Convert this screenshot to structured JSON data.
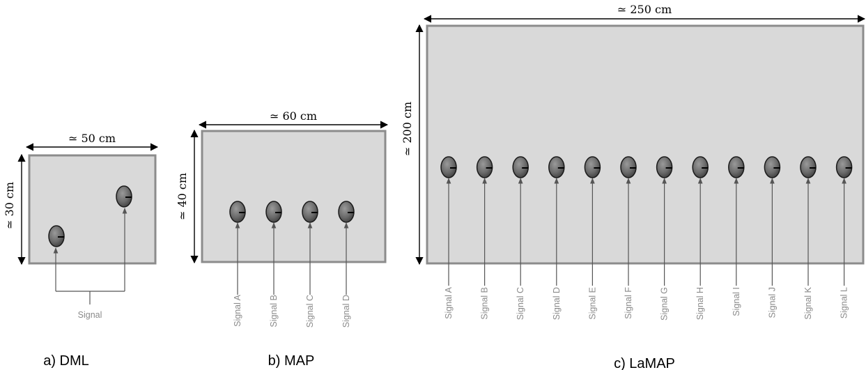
{
  "colors": {
    "panel_fill": "#d9d9d9",
    "panel_border": "#8c8c8c",
    "signal_text": "#8a8a8a",
    "sensor": "#6b6b6b"
  },
  "panels": [
    {
      "id": "dml",
      "caption": "a) DML",
      "width_label": "≃ 50 cm",
      "height_label": "≃ 30 cm",
      "shared_signal_label": "Signal",
      "sensors": 2
    },
    {
      "id": "map",
      "caption": "b) MAP",
      "width_label": "≃ 60 cm",
      "height_label": "≃ 40 cm",
      "signals": [
        "Signal A",
        "Signal B",
        "Signal C",
        "Signal D"
      ]
    },
    {
      "id": "lamap",
      "caption": "c) LaMAP",
      "width_label": "≃ 250 cm",
      "height_label": "≃ 200 cm",
      "signals": [
        "Signal A",
        "Signal B",
        "Signal C",
        "Signal D",
        "Signal E",
        "Signal F",
        "Signal G",
        "Signal H",
        "Signal I",
        "Signal J",
        "Signal K",
        "Signal L"
      ]
    }
  ]
}
